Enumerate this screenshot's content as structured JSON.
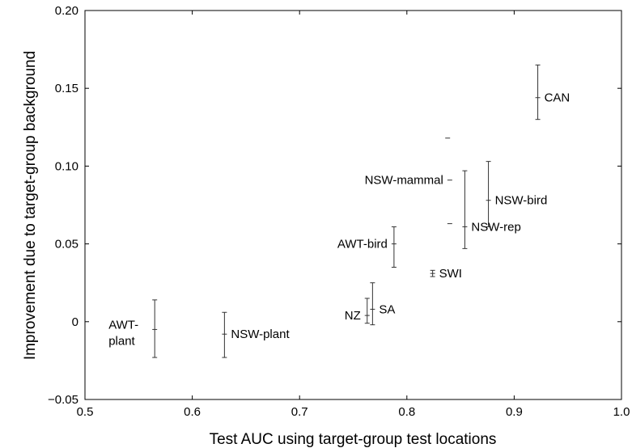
{
  "chart_data": {
    "type": "scatter",
    "title": "",
    "xlabel": "Test AUC using target-group test locations",
    "ylabel": "Improvement due to target-group background",
    "xlim": [
      0.5,
      1.0
    ],
    "ylim": [
      -0.05,
      0.2
    ],
    "xticks": [
      "0.5",
      "0.6",
      "0.7",
      "0.8",
      "0.9",
      "1.0"
    ],
    "yticks": [
      "−0.05",
      "0",
      "0.05",
      "0.10",
      "0.15",
      "0.20"
    ],
    "grid": false,
    "points": [
      {
        "label": "CAN",
        "x": 0.922,
        "y": 0.144,
        "ylow": 0.13,
        "yhigh": 0.165,
        "label_side": "right"
      },
      {
        "label": "NSW-bird",
        "x": 0.876,
        "y": 0.078,
        "ylow": 0.061,
        "yhigh": 0.103,
        "label_side": "right"
      },
      {
        "label": "NSW-rep",
        "x": 0.854,
        "y": 0.061,
        "ylow": 0.047,
        "yhigh": 0.097,
        "label_side": "right"
      },
      {
        "label": "NSW-mammal",
        "x": 0.84,
        "y": 0.091,
        "ylow": null,
        "yhigh": null,
        "label_side": "left"
      },
      {
        "label": "AWT-bird",
        "x": 0.788,
        "y": 0.05,
        "ylow": 0.035,
        "yhigh": 0.061,
        "label_side": "left"
      },
      {
        "label": "SWI",
        "x": 0.824,
        "y": 0.031,
        "ylow": 0.029,
        "yhigh": 0.033,
        "label_side": "right"
      },
      {
        "label": "SA",
        "x": 0.768,
        "y": 0.008,
        "ylow": -0.002,
        "yhigh": 0.025,
        "label_side": "right"
      },
      {
        "label": "NZ",
        "x": 0.763,
        "y": 0.004,
        "ylow": -0.001,
        "yhigh": 0.015,
        "label_side": "left"
      },
      {
        "label": "NSW-plant",
        "x": 0.63,
        "y": -0.008,
        "ylow": -0.023,
        "yhigh": 0.006,
        "label_side": "right"
      },
      {
        "label": "AWT-plant",
        "x": 0.565,
        "y": -0.005,
        "ylow": -0.023,
        "yhigh": 0.014,
        "label_side": "left"
      }
    ],
    "unlabeled_marks": [
      {
        "x": 0.838,
        "y": 0.118
      },
      {
        "x": 0.84,
        "y": 0.063
      }
    ]
  }
}
